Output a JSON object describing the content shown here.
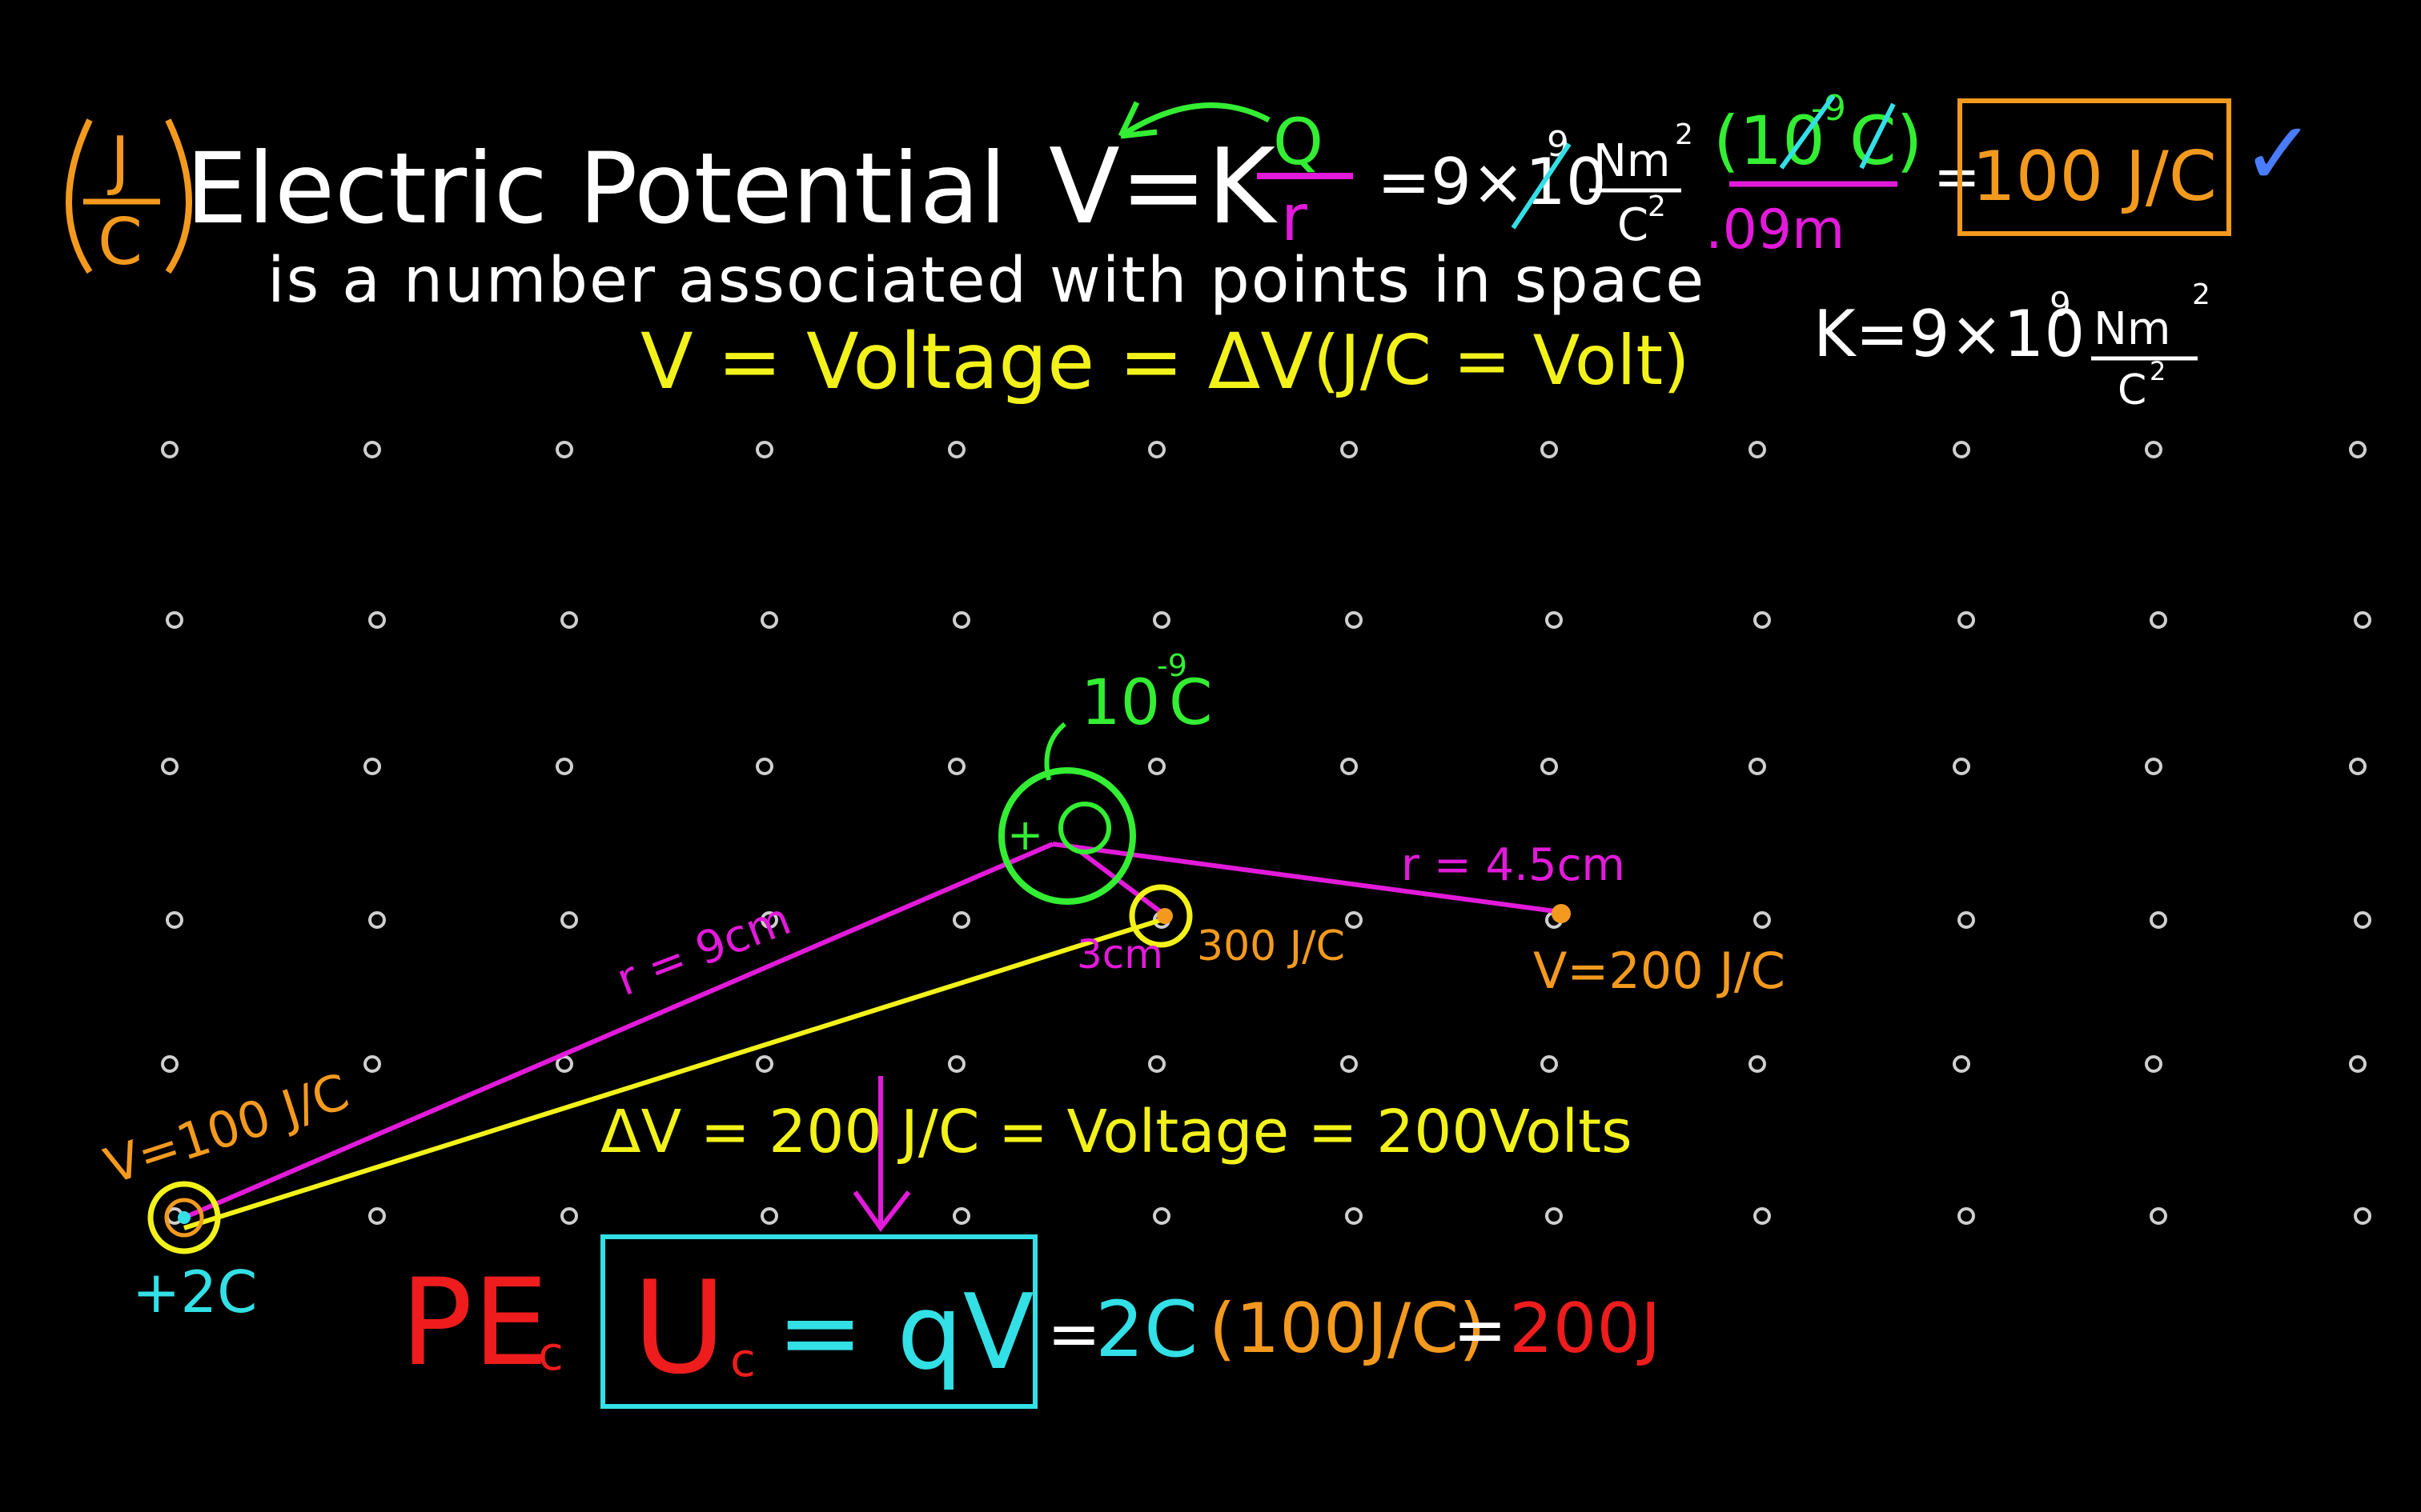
{
  "title": {
    "heading": "Electric Potential",
    "subtitle": "is a number associated with points in space",
    "unit_numerator": "J",
    "unit_denominator": "C"
  },
  "formulas": {
    "potential_lhs": "V=K",
    "potential_Q": "Q",
    "potential_r": "r",
    "substitution": "=9×10",
    "sub_exp": "9",
    "sub_units_num": "Nm",
    "sub_units_exp": "2",
    "sub_units_den": "C",
    "sub_units_den_exp": "2",
    "charge_num": "(10",
    "charge_exp": "-9",
    "charge_unit": "C)",
    "distance_den": ".09m",
    "equals": "=",
    "result": "100 J/C",
    "result_check": "✓",
    "k_constant": "K=9×10",
    "k_exp": "9",
    "k_units_num": "Nm",
    "k_units_exp": "2",
    "k_units_den": "C",
    "k_units_den_exp": "2",
    "voltage_definition": "V = Voltage = ΔV",
    "volt_unit": "(J/C = Volt)"
  },
  "diagram": {
    "charge_label": "10",
    "charge_label_exp": "-9",
    "charge_label_unit": "C",
    "charge_sign": "+",
    "r_far": "r = 4.5cm",
    "v_far": "V=200 J/C",
    "r_near": "3cm",
    "v_near": "300 J/C",
    "r_main": "r = 9cm",
    "v_left": "V=100 J/C",
    "left_charge": "+2C",
    "delta_v": "ΔV = 200 J/C = Voltage = 200Volts"
  },
  "energy": {
    "pe_label": "PE",
    "pe_sub": "c",
    "u_label": "U",
    "u_sub": "c",
    "qv": "= qV",
    "calc_eq": "=",
    "calc_charge": "2C",
    "calc_potential": "(100J/C)",
    "calc_result_eq": "=",
    "calc_result": "200J"
  },
  "colors": {
    "background": "#000000",
    "white": "#ffffff",
    "orange": "#f39a1e",
    "green": "#33ee33",
    "yellow": "#f2f21a",
    "magenta": "#e21ad9",
    "cyan": "#32e0e6",
    "red": "#ee1c1c",
    "blue": "#4a7cff",
    "dot": "#cfcfcf"
  }
}
